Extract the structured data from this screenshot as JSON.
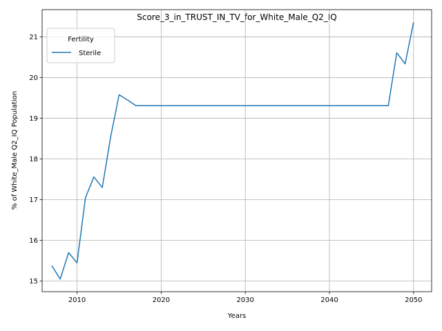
{
  "chart_data": {
    "type": "line",
    "title": "Score_3_in_TRUST_IN_TV_for_White_Male_Q2_IQ",
    "xlabel": "Years",
    "ylabel": "% of White_Male Q2_IQ Population",
    "xlim": [
      2005.85,
      2052.15
    ],
    "ylim": [
      14.74,
      21.67
    ],
    "xticks": [
      2010,
      2020,
      2030,
      2040,
      2050
    ],
    "yticks": [
      15,
      16,
      17,
      18,
      19,
      20,
      21
    ],
    "grid": true,
    "legend": {
      "title": "Fertility",
      "placement": "top-left"
    },
    "series": [
      {
        "name": "Sterile",
        "color": "#1f77b4",
        "x": [
          2007,
          2008,
          2009,
          2010,
          2011,
          2012,
          2013,
          2014,
          2015,
          2016,
          2017,
          2018,
          2019,
          2020,
          2021,
          2022,
          2023,
          2024,
          2025,
          2026,
          2027,
          2028,
          2029,
          2030,
          2031,
          2032,
          2033,
          2034,
          2035,
          2036,
          2037,
          2038,
          2039,
          2040,
          2041,
          2042,
          2043,
          2044,
          2045,
          2046,
          2047,
          2048,
          2049,
          2050
        ],
        "y": [
          15.38,
          15.05,
          15.7,
          15.45,
          17.05,
          17.56,
          17.3,
          18.55,
          19.58,
          19.45,
          19.31,
          19.31,
          19.31,
          19.31,
          19.31,
          19.31,
          19.31,
          19.31,
          19.31,
          19.31,
          19.31,
          19.31,
          19.31,
          19.31,
          19.31,
          19.31,
          19.31,
          19.31,
          19.31,
          19.31,
          19.31,
          19.31,
          19.31,
          19.31,
          19.31,
          19.31,
          19.31,
          19.31,
          19.31,
          19.31,
          19.31,
          20.61,
          20.34,
          21.36
        ]
      }
    ]
  }
}
